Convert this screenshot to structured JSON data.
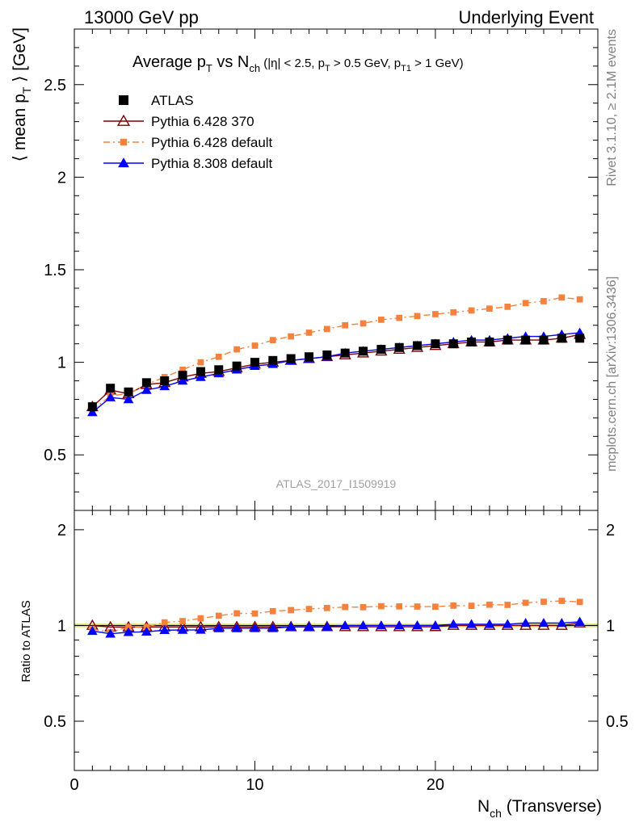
{
  "header": {
    "left": "13000 GeV pp",
    "right": "Underlying Event"
  },
  "side_text": {
    "rivet": "Rivet 3.1.10, ≥ 2.1M events",
    "mcplots": "mcplots.cern.ch [arXiv:1306.3436]"
  },
  "chart_data": {
    "type": "scatter",
    "title": {
      "text": "Average p",
      "sub1": "T",
      "mid": " vs N",
      "sub2": "ch",
      "rest_a": " (|η| < 2.5, p",
      "sub3": "T",
      "rest_b": " > 0.5 GeV, p",
      "sub4": "T1",
      "rest_c": " > 1 GeV)"
    },
    "ylabel": {
      "pre": "⟨ mean p",
      "sub": "T",
      "post": " ⟩ [GeV]"
    },
    "xlabel": {
      "pre": "N",
      "sub": "ch",
      "post": " (Transverse)"
    },
    "ratio_ylabel": "Ratio to ATLAS",
    "watermark": "ATLAS_2017_I1509919",
    "xlim": [
      0,
      29
    ],
    "ylim": [
      0.2,
      2.8
    ],
    "ratio_ylim": [
      0.35,
      2.3
    ],
    "x_ticks": [
      0,
      10,
      20
    ],
    "x_tick_labels": [
      "0",
      "10",
      "20"
    ],
    "y_ticks": [
      0.5,
      1,
      1.5,
      2,
      2.5
    ],
    "y_tick_labels": [
      "0.5",
      "1",
      "1.5",
      "2",
      "2.5"
    ],
    "ratio_y_ticks": [
      0.5,
      1,
      2
    ],
    "ratio_y_tick_labels": [
      "0.5",
      "1",
      "2"
    ],
    "x": [
      1,
      2,
      3,
      4,
      5,
      6,
      7,
      8,
      9,
      10,
      11,
      12,
      13,
      14,
      15,
      16,
      17,
      18,
      19,
      20,
      21,
      22,
      23,
      24,
      25,
      26,
      27,
      28
    ],
    "series": [
      {
        "name": "ATLAS",
        "color": "#000000",
        "marker": "square",
        "values": [
          0.76,
          0.86,
          0.84,
          0.89,
          0.9,
          0.93,
          0.95,
          0.96,
          0.98,
          1.0,
          1.01,
          1.02,
          1.03,
          1.04,
          1.05,
          1.06,
          1.07,
          1.08,
          1.09,
          1.1,
          1.1,
          1.11,
          1.11,
          1.12,
          1.12,
          1.12,
          1.13,
          1.13
        ]
      },
      {
        "name": "Pythia 6.428 370",
        "color": "#800000",
        "marker": "open-triangle",
        "line": "solid",
        "values": [
          0.76,
          0.85,
          0.83,
          0.88,
          0.89,
          0.92,
          0.94,
          0.95,
          0.97,
          0.99,
          1.0,
          1.01,
          1.02,
          1.03,
          1.04,
          1.05,
          1.06,
          1.07,
          1.08,
          1.09,
          1.1,
          1.11,
          1.11,
          1.12,
          1.12,
          1.12,
          1.13,
          1.15
        ]
      },
      {
        "name": "Pythia 6.428 default",
        "color": "#f5823c",
        "marker": "small-square",
        "line": "dashdot",
        "values": [
          0.74,
          0.82,
          0.83,
          0.88,
          0.92,
          0.96,
          1.0,
          1.03,
          1.07,
          1.09,
          1.12,
          1.14,
          1.16,
          1.18,
          1.2,
          1.21,
          1.23,
          1.24,
          1.25,
          1.26,
          1.27,
          1.28,
          1.29,
          1.3,
          1.32,
          1.33,
          1.35,
          1.34
        ]
      },
      {
        "name": "Pythia 8.308 default",
        "color": "#0000ff",
        "marker": "triangle",
        "line": "solid",
        "values": [
          0.73,
          0.81,
          0.8,
          0.85,
          0.87,
          0.9,
          0.92,
          0.94,
          0.96,
          0.98,
          0.99,
          1.01,
          1.02,
          1.03,
          1.05,
          1.06,
          1.07,
          1.08,
          1.09,
          1.1,
          1.11,
          1.12,
          1.12,
          1.13,
          1.14,
          1.14,
          1.15,
          1.16
        ]
      }
    ],
    "ratio_band_color": "#ccdd33"
  }
}
